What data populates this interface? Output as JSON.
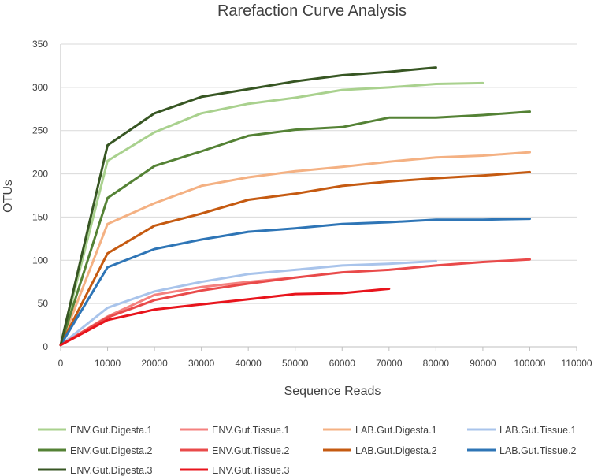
{
  "chart_data": {
    "type": "line",
    "title": "Rarefaction Curve Analysis",
    "xlabel": "Sequence Reads",
    "ylabel": "OTUs",
    "xlim": [
      0,
      110000
    ],
    "ylim": [
      0,
      350
    ],
    "x_ticks": [
      0,
      10000,
      20000,
      30000,
      40000,
      50000,
      60000,
      70000,
      80000,
      90000,
      100000,
      110000
    ],
    "y_ticks": [
      0,
      50,
      100,
      150,
      200,
      250,
      300,
      350
    ],
    "grid": "horizontal",
    "legend_position": "bottom",
    "series": [
      {
        "name": "ENV.Gut.Digesta.1",
        "color": "#a9d18e",
        "x": [
          0,
          10000,
          20000,
          30000,
          40000,
          50000,
          60000,
          70000,
          80000,
          90000
        ],
        "y": [
          2,
          215,
          248,
          270,
          281,
          288,
          297,
          300,
          304,
          305
        ]
      },
      {
        "name": "ENV.Gut.Tissue.1",
        "color": "#f4817f",
        "x": [
          0,
          10000,
          20000,
          30000,
          40000,
          50000
        ],
        "y": [
          2,
          35,
          60,
          69,
          75,
          80
        ]
      },
      {
        "name": "LAB.Gut.Digesta.1",
        "color": "#f4b183",
        "x": [
          0,
          10000,
          20000,
          30000,
          40000,
          50000,
          60000,
          70000,
          80000,
          90000,
          100000
        ],
        "y": [
          2,
          142,
          166,
          186,
          196,
          203,
          208,
          214,
          219,
          221,
          225
        ]
      },
      {
        "name": "LAB.Gut.Tissue.1",
        "color": "#a9c4eb",
        "x": [
          0,
          10000,
          20000,
          30000,
          40000,
          50000,
          60000,
          70000,
          80000
        ],
        "y": [
          2,
          45,
          64,
          75,
          84,
          89,
          94,
          96,
          99
        ]
      },
      {
        "name": "ENV.Gut.Digesta.2",
        "color": "#548235",
        "x": [
          0,
          10000,
          20000,
          30000,
          40000,
          50000,
          60000,
          70000,
          80000,
          90000,
          100000
        ],
        "y": [
          2,
          172,
          209,
          226,
          244,
          251,
          254,
          265,
          265,
          268,
          272
        ]
      },
      {
        "name": "ENV.Gut.Tissue.2",
        "color": "#e94a4a",
        "x": [
          0,
          10000,
          20000,
          30000,
          40000,
          50000,
          60000,
          70000,
          80000,
          90000,
          100000
        ],
        "y": [
          2,
          34,
          54,
          65,
          73,
          80,
          86,
          89,
          94,
          98,
          101
        ]
      },
      {
        "name": "LAB.Gut.Digesta.2",
        "color": "#c55a11",
        "x": [
          0,
          10000,
          20000,
          30000,
          40000,
          50000,
          60000,
          70000,
          80000,
          90000,
          100000
        ],
        "y": [
          2,
          108,
          140,
          154,
          170,
          177,
          186,
          191,
          195,
          198,
          202
        ]
      },
      {
        "name": "LAB.Gut.Tissue.2",
        "color": "#2e75b6",
        "x": [
          0,
          10000,
          20000,
          30000,
          40000,
          50000,
          60000,
          70000,
          80000,
          90000,
          100000
        ],
        "y": [
          2,
          92,
          113,
          124,
          133,
          137,
          142,
          144,
          147,
          147,
          148
        ]
      },
      {
        "name": "ENV.Gut.Digesta.3",
        "color": "#375623",
        "x": [
          0,
          10000,
          20000,
          30000,
          40000,
          50000,
          60000,
          70000,
          80000
        ],
        "y": [
          2,
          233,
          270,
          289,
          298,
          307,
          314,
          318,
          323
        ]
      },
      {
        "name": "ENV.Gut.Tissue.3",
        "color": "#e8141c",
        "x": [
          0,
          10000,
          20000,
          30000,
          40000,
          50000,
          60000,
          70000
        ],
        "y": [
          2,
          31,
          43,
          49,
          55,
          61,
          62,
          67
        ]
      }
    ]
  }
}
